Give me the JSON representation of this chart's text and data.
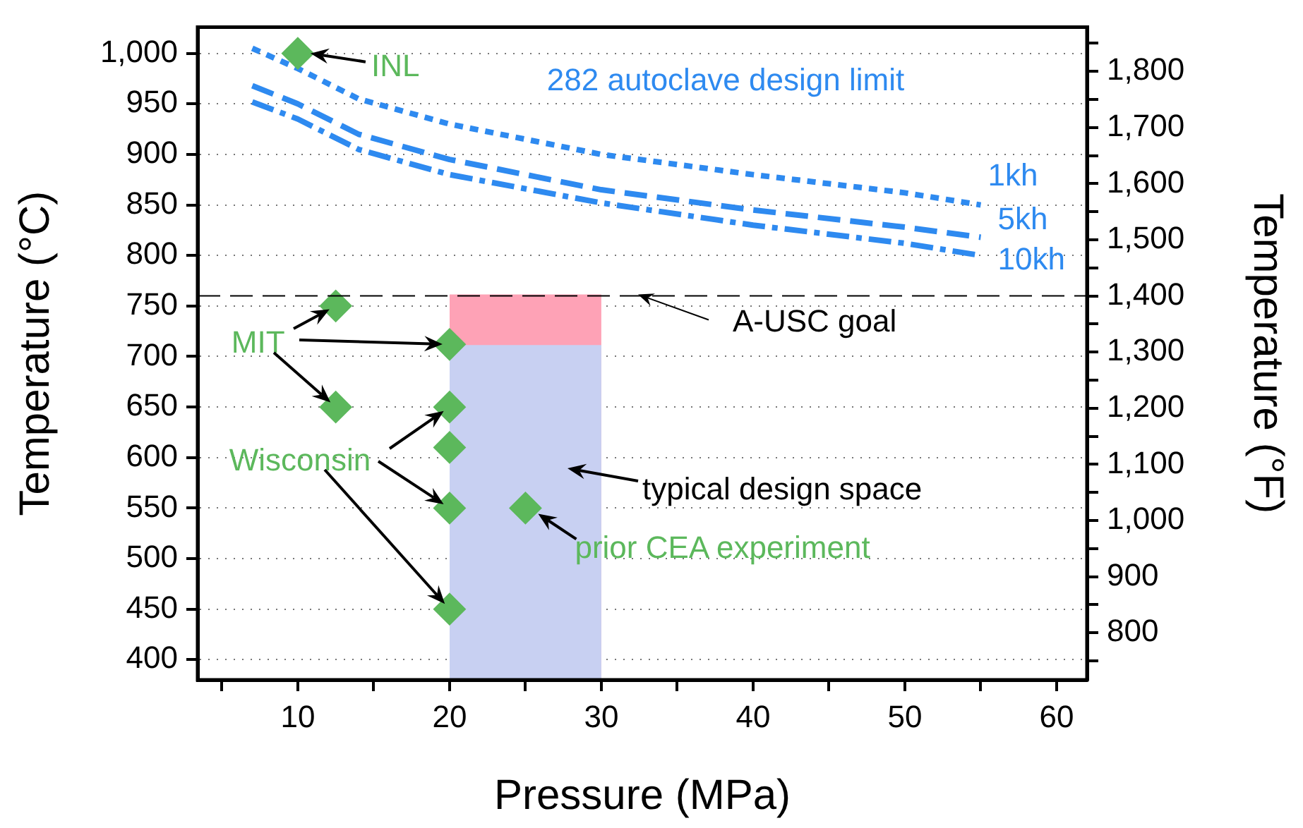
{
  "chart_data": {
    "type": "line",
    "xlabel": "Pressure (MPa)",
    "ylabel": "Temperature (°C)",
    "y2label": "Temperature (°F)",
    "xlim": [
      3.4,
      62
    ],
    "xticks": [
      {
        "value": 5,
        "label": null
      },
      10,
      {
        "value": 15,
        "label": null
      },
      20,
      {
        "value": 25,
        "label": null
      },
      30,
      {
        "value": 35,
        "label": null
      },
      40,
      {
        "value": 45,
        "label": null
      },
      50,
      {
        "value": 55,
        "label": null
      },
      60
    ],
    "ylim": [
      380,
      1026
    ],
    "yticks": [
      400,
      450,
      500,
      550,
      600,
      650,
      700,
      750,
      800,
      850,
      900,
      950,
      {
        "value": 1000,
        "label": "1,000"
      }
    ],
    "y2lim": [
      716,
      1879
    ],
    "y2ticks": [
      {
        "value": 750,
        "label": null
      },
      800,
      {
        "value": 850,
        "label": null
      },
      900,
      {
        "value": 950,
        "label": null
      },
      {
        "value": 1000,
        "label": "1,000"
      },
      {
        "value": 1050,
        "label": null
      },
      {
        "value": 1100,
        "label": "1,100"
      },
      {
        "value": 1150,
        "label": null
      },
      {
        "value": 1200,
        "label": "1,200"
      },
      {
        "value": 1250,
        "label": null
      },
      {
        "value": 1300,
        "label": "1,300"
      },
      {
        "value": 1350,
        "label": null
      },
      {
        "value": 1400,
        "label": "1,400"
      },
      {
        "value": 1450,
        "label": null
      },
      {
        "value": 1500,
        "label": "1,500"
      },
      {
        "value": 1550,
        "label": null
      },
      {
        "value": 1600,
        "label": "1,600"
      },
      {
        "value": 1650,
        "label": null
      },
      {
        "value": 1700,
        "label": "1,700"
      },
      {
        "value": 1750,
        "label": null
      },
      {
        "value": 1800,
        "label": "1,800"
      },
      {
        "value": 1850,
        "label": null
      }
    ],
    "grid": "y",
    "legend": false,
    "series": [
      {
        "type": "area",
        "color": "#fea2b6",
        "x": [
          20,
          30
        ],
        "values": [
          760,
          760
        ]
      },
      {
        "type": "area",
        "color": "#c8d0f2",
        "x": [
          20,
          30
        ],
        "values": [
          710,
          710
        ]
      },
      {
        "name": "1kh",
        "color": "#2e8af0",
        "line_style": "dotted",
        "marker": "none",
        "x": [
          7,
          10,
          14,
          20,
          30,
          40,
          50,
          55
        ],
        "values": [
          1005,
          985,
          955,
          930,
          900,
          880,
          862,
          850
        ]
      },
      {
        "name": "5kh",
        "color": "#2e8af0",
        "line_style": "dashed",
        "marker": "none",
        "x": [
          7,
          10,
          14,
          20,
          30,
          40,
          50,
          55
        ],
        "values": [
          968,
          950,
          920,
          895,
          865,
          845,
          828,
          818
        ]
      },
      {
        "name": "10kh",
        "color": "#2e8af0",
        "line_style": "dashdot",
        "marker": "none",
        "x": [
          7,
          10,
          14,
          20,
          30,
          40,
          50,
          55
        ],
        "values": [
          952,
          935,
          905,
          880,
          852,
          830,
          812,
          800
        ]
      },
      {
        "type": "scatter",
        "color": "#5cb85c",
        "marker": "diamond",
        "x": [
          10,
          12.5,
          20,
          12.5,
          20,
          20,
          20,
          20,
          25
        ],
        "values": [
          1000,
          750,
          712,
          650,
          650,
          610,
          550,
          450,
          550
        ]
      }
    ],
    "ref_lines": [
      {
        "axis": "y",
        "value": 760,
        "label": "A-USC goal",
        "color": "#000000",
        "line_style": "dashed"
      }
    ],
    "annotations": [
      "282 autoclave design limit",
      {
        "text": "INL",
        "x": 10,
        "y": 1000
      },
      {
        "text": "MIT",
        "x": 12.5,
        "y": 750
      },
      {
        "text": "Wisconsin",
        "x": 20,
        "y": 650
      },
      "typical design space",
      {
        "text": "prior CEA experiment",
        "x": 25,
        "y": 550
      }
    ]
  }
}
